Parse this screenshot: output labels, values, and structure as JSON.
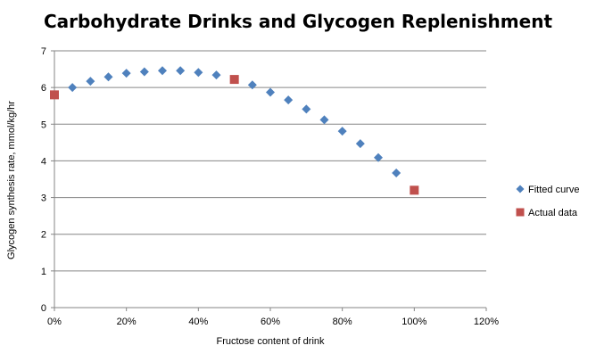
{
  "chart_data": {
    "type": "scatter",
    "title": "Carbohydrate Drinks and Glycogen Replenishment",
    "xlabel": "Fructose content of drink",
    "ylabel": "Glycogen synthesis rate, mmol/kg/hr",
    "xlim": [
      0,
      1.2
    ],
    "ylim": [
      0,
      7
    ],
    "x_ticks": [
      0,
      0.2,
      0.4,
      0.6,
      0.8,
      1.0,
      1.2
    ],
    "x_tick_labels": [
      "0%",
      "20%",
      "40%",
      "60%",
      "80%",
      "100%",
      "120%"
    ],
    "y_ticks": [
      0,
      1,
      2,
      3,
      4,
      5,
      6,
      7
    ],
    "y_tick_labels": [
      "0",
      "1",
      "2",
      "3",
      "4",
      "5",
      "6",
      "7"
    ],
    "grid": "horizontal",
    "legend_position": "right",
    "series": [
      {
        "name": "Fitted curve",
        "marker": "diamond",
        "color": "#4F81BD",
        "x": [
          0.05,
          0.1,
          0.15,
          0.2,
          0.25,
          0.3,
          0.35,
          0.4,
          0.45,
          0.55,
          0.6,
          0.65,
          0.7,
          0.75,
          0.8,
          0.85,
          0.9,
          0.95
        ],
        "y": [
          6.0,
          6.17,
          6.29,
          6.39,
          6.43,
          6.46,
          6.46,
          6.41,
          6.34,
          6.07,
          5.87,
          5.66,
          5.41,
          5.12,
          4.81,
          4.47,
          4.09,
          3.67
        ]
      },
      {
        "name": "Actual data",
        "marker": "square",
        "color": "#C0504D",
        "x": [
          0,
          0.5,
          1.0
        ],
        "y": [
          5.8,
          6.22,
          3.2
        ]
      }
    ]
  }
}
